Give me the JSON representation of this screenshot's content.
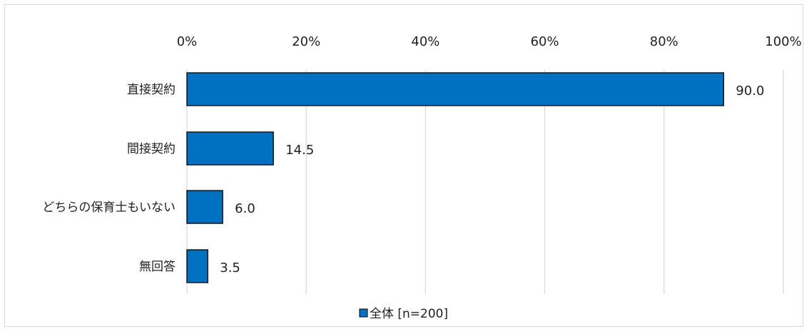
{
  "chart_data": {
    "type": "bar",
    "orientation": "horizontal",
    "categories": [
      "直接契約",
      "間接契約",
      "どちらの保育士もいない",
      "無回答"
    ],
    "series": [
      {
        "name": "全体 [n=200]",
        "values": [
          90.0,
          14.5,
          6.0,
          3.5
        ],
        "value_labels": [
          "90.0",
          "14.5",
          "6.0",
          "3.5"
        ],
        "color": "#0070c0"
      }
    ],
    "xlim": [
      0,
      100
    ],
    "x_ticks": [
      0,
      20,
      40,
      60,
      80,
      100
    ],
    "x_tick_labels": [
      "0%",
      "20%",
      "40%",
      "60%",
      "80%",
      "100%"
    ],
    "axis_position": "top",
    "grid": true,
    "grid_color": "#d9d9d9",
    "legend_position": "bottom-center",
    "title": "",
    "xlabel": "",
    "ylabel": ""
  }
}
